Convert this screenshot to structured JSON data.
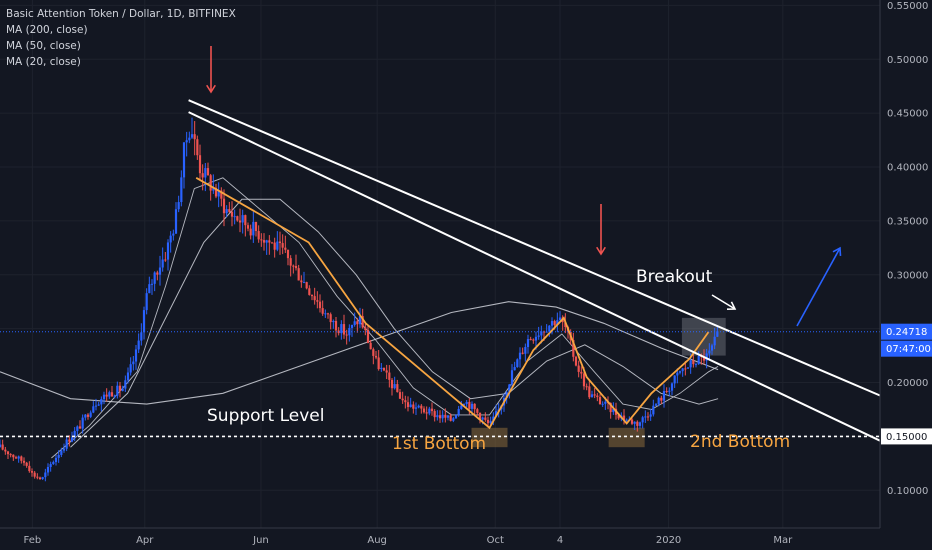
{
  "chart_data": {
    "type": "candlestick",
    "title": "Basic Attention Token / Dollar, 1D, BITFINEX",
    "indicators": [
      "MA (200, close)",
      "MA (50, close)",
      "MA (20, close)"
    ],
    "yticks": [
      "0.55000",
      "0.50000",
      "0.45000",
      "0.40000",
      "0.35000",
      "0.30000",
      "0.25000",
      "0.20000",
      "0.15000",
      "0.10000"
    ],
    "ytick_values": [
      0.55,
      0.5,
      0.45,
      0.4,
      0.35,
      0.3,
      0.25,
      0.2,
      0.15,
      0.1
    ],
    "xticks": [
      "Feb",
      "Apr",
      "Jun",
      "Aug",
      "Oct",
      "4",
      "2020",
      "Mar"
    ],
    "xtick_days": [
      0,
      59,
      120,
      181,
      243,
      277,
      334,
      394
    ],
    "ylim": [
      0.065,
      0.555
    ],
    "xlim_days": [
      -17,
      445
    ],
    "price_badge": {
      "value": "0.24718",
      "countdown": "07:47:00",
      "level": 0.24718
    },
    "support_badge": {
      "value": "0.15000",
      "level": 0.15
    },
    "annotations": {
      "support_level": "Support Level",
      "first_bottom": "1st Bottom",
      "second_bottom": "2nd Bottom",
      "breakout": "Breakout"
    },
    "colors": {
      "up": "#2962ff",
      "down": "#ef5350",
      "trend": "#f7a541",
      "line": "#ffffff",
      "arrow_red": "#ef5350",
      "arrow_blue": "#2962ff"
    },
    "close_path": [
      [
        -17,
        0.14
      ],
      [
        -10,
        0.132
      ],
      [
        -3,
        0.125
      ],
      [
        0,
        0.115
      ],
      [
        5,
        0.11
      ],
      [
        10,
        0.125
      ],
      [
        18,
        0.145
      ],
      [
        25,
        0.16
      ],
      [
        32,
        0.18
      ],
      [
        40,
        0.19
      ],
      [
        48,
        0.195
      ],
      [
        55,
        0.23
      ],
      [
        60,
        0.28
      ],
      [
        64,
        0.3
      ],
      [
        70,
        0.32
      ],
      [
        75,
        0.35
      ],
      [
        78,
        0.39
      ],
      [
        80,
        0.42
      ],
      [
        83,
        0.44
      ],
      [
        88,
        0.4
      ],
      [
        95,
        0.38
      ],
      [
        102,
        0.36
      ],
      [
        110,
        0.35
      ],
      [
        118,
        0.34
      ],
      [
        125,
        0.33
      ],
      [
        132,
        0.32
      ],
      [
        140,
        0.3
      ],
      [
        148,
        0.28
      ],
      [
        155,
        0.26
      ],
      [
        165,
        0.245
      ],
      [
        172,
        0.26
      ],
      [
        180,
        0.22
      ],
      [
        188,
        0.2
      ],
      [
        196,
        0.18
      ],
      [
        204,
        0.175
      ],
      [
        212,
        0.17
      ],
      [
        220,
        0.165
      ],
      [
        226,
        0.185
      ],
      [
        232,
        0.175
      ],
      [
        240,
        0.16
      ],
      [
        245,
        0.175
      ],
      [
        252,
        0.21
      ],
      [
        260,
        0.24
      ],
      [
        268,
        0.25
      ],
      [
        276,
        0.26
      ],
      [
        280,
        0.25
      ],
      [
        285,
        0.22
      ],
      [
        292,
        0.19
      ],
      [
        300,
        0.18
      ],
      [
        308,
        0.17
      ],
      [
        313,
        0.165
      ],
      [
        318,
        0.162
      ],
      [
        325,
        0.175
      ],
      [
        332,
        0.19
      ],
      [
        340,
        0.21
      ],
      [
        348,
        0.22
      ],
      [
        355,
        0.225
      ],
      [
        360,
        0.245
      ]
    ],
    "ma200": [
      [
        -17,
        0.21
      ],
      [
        20,
        0.185
      ],
      [
        60,
        0.18
      ],
      [
        100,
        0.19
      ],
      [
        140,
        0.215
      ],
      [
        180,
        0.24
      ],
      [
        220,
        0.265
      ],
      [
        250,
        0.275
      ],
      [
        275,
        0.27
      ],
      [
        300,
        0.255
      ],
      [
        330,
        0.232
      ],
      [
        360,
        0.212
      ]
    ],
    "ma50": [
      [
        20,
        0.14
      ],
      [
        50,
        0.19
      ],
      [
        70,
        0.26
      ],
      [
        90,
        0.33
      ],
      [
        110,
        0.37
      ],
      [
        130,
        0.37
      ],
      [
        150,
        0.34
      ],
      [
        170,
        0.3
      ],
      [
        190,
        0.25
      ],
      [
        210,
        0.21
      ],
      [
        230,
        0.185
      ],
      [
        250,
        0.19
      ],
      [
        270,
        0.22
      ],
      [
        290,
        0.235
      ],
      [
        310,
        0.215
      ],
      [
        330,
        0.19
      ],
      [
        350,
        0.18
      ],
      [
        360,
        0.185
      ]
    ],
    "ma20": [
      [
        10,
        0.13
      ],
      [
        30,
        0.16
      ],
      [
        55,
        0.21
      ],
      [
        70,
        0.29
      ],
      [
        85,
        0.38
      ],
      [
        100,
        0.39
      ],
      [
        120,
        0.36
      ],
      [
        140,
        0.33
      ],
      [
        160,
        0.28
      ],
      [
        180,
        0.24
      ],
      [
        200,
        0.195
      ],
      [
        220,
        0.17
      ],
      [
        240,
        0.17
      ],
      [
        260,
        0.22
      ],
      [
        278,
        0.245
      ],
      [
        295,
        0.21
      ],
      [
        310,
        0.18
      ],
      [
        325,
        0.175
      ],
      [
        340,
        0.19
      ],
      [
        355,
        0.21
      ],
      [
        360,
        0.215
      ]
    ],
    "trendline_upper": [
      [
        82,
        0.462
      ],
      [
        445,
        0.188
      ]
    ],
    "trendline_lower": [
      [
        82,
        0.451
      ],
      [
        445,
        0.146
      ]
    ],
    "support_line": 0.15,
    "orange_path": [
      [
        86,
        0.39
      ],
      [
        145,
        0.33
      ],
      [
        175,
        0.255
      ],
      [
        240,
        0.158
      ],
      [
        263,
        0.23
      ],
      [
        279,
        0.26
      ],
      [
        291,
        0.205
      ],
      [
        312,
        0.162
      ],
      [
        325,
        0.19
      ],
      [
        345,
        0.222
      ],
      [
        355,
        0.247
      ]
    ],
    "pivot_boxes": [
      {
        "day": 240,
        "low": 0.14,
        "high": 0.158
      },
      {
        "day": 312,
        "low": 0.14,
        "high": 0.158
      }
    ],
    "breakout_box": {
      "day_start": 341,
      "day_end": 364,
      "low": 0.225,
      "high": 0.26
    }
  }
}
